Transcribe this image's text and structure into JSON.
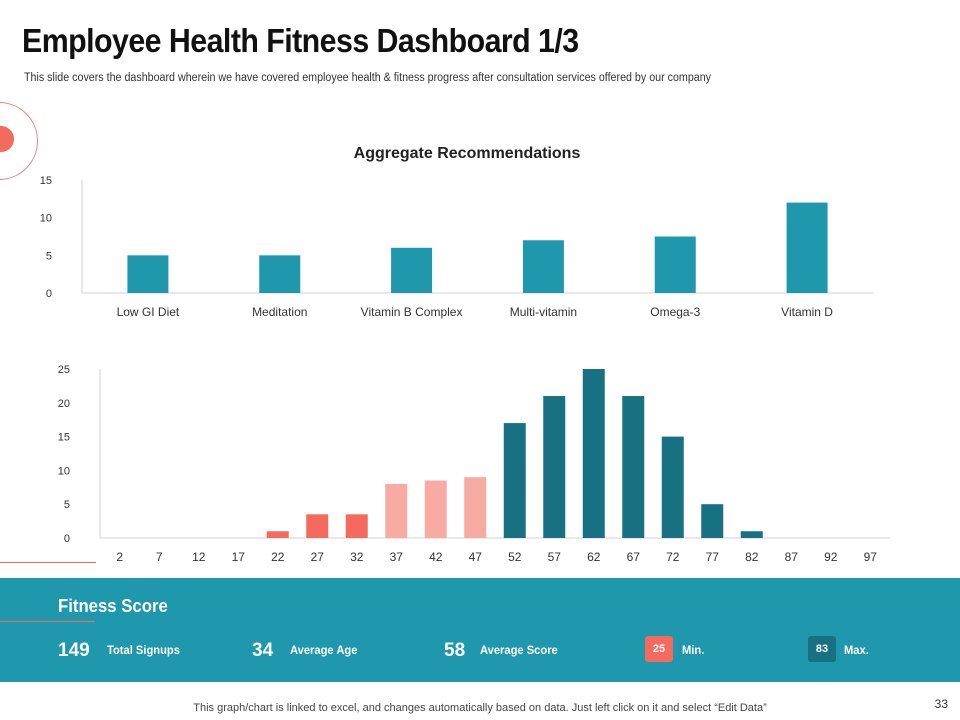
{
  "header": {
    "title": "Employee Health Fitness Dashboard 1/3",
    "subtitle": "This slide covers the dashboard wherein we have covered employee health & fitness progress after consultation services offered by our company"
  },
  "colors": {
    "teal": "#1f97ad",
    "dark_teal": "#187083",
    "coral": "#f46a5d",
    "light_coral": "#f7aba2",
    "band": "#1f97ad"
  },
  "chart_data": [
    {
      "type": "bar",
      "title": "Aggregate Recommendations",
      "categories": [
        "Low GI Diet",
        "Meditation",
        "Vitamin B Complex",
        "Multi-vitamin",
        "Omega-3",
        "Vitamin D"
      ],
      "values": [
        5,
        5,
        6,
        7,
        7.5,
        12
      ],
      "ylim": [
        0,
        15
      ],
      "yticks": [
        "0",
        "5",
        "10",
        "15"
      ],
      "xlabel": "",
      "ylabel": ""
    },
    {
      "type": "bar",
      "title": "",
      "categories": [
        "2",
        "7",
        "12",
        "17",
        "22",
        "27",
        "32",
        "37",
        "42",
        "47",
        "52",
        "57",
        "62",
        "67",
        "72",
        "77",
        "82",
        "87",
        "92",
        "97"
      ],
      "values": [
        0,
        0,
        0,
        0,
        1,
        3.5,
        3.5,
        8,
        8.5,
        9,
        17,
        21,
        25,
        21,
        15,
        5,
        1,
        0,
        0,
        0
      ],
      "bar_groups": [
        "none",
        "none",
        "none",
        "none",
        "coral",
        "coral",
        "coral",
        "light_coral",
        "light_coral",
        "light_coral",
        "dark_teal",
        "dark_teal",
        "dark_teal",
        "dark_teal",
        "dark_teal",
        "dark_teal",
        "dark_teal",
        "none",
        "none",
        "none"
      ],
      "ylim": [
        0,
        25
      ],
      "yticks": [
        "0",
        "5",
        "10",
        "15",
        "20",
        "25"
      ],
      "xlabel": "",
      "ylabel": ""
    }
  ],
  "fitness": {
    "title": "Fitness Score",
    "signups": {
      "value": "149",
      "label": "Total Signups"
    },
    "age": {
      "value": "34",
      "label": "Average Age"
    },
    "score": {
      "value": "58",
      "label": "Average Score"
    },
    "min": {
      "value": "25",
      "label": "Min."
    },
    "max": {
      "value": "83",
      "label": "Max."
    }
  },
  "footer": {
    "note": "This graph/chart is linked to excel, and changes automatically based on data. Just left click on it and select “Edit Data”",
    "page": "33"
  }
}
